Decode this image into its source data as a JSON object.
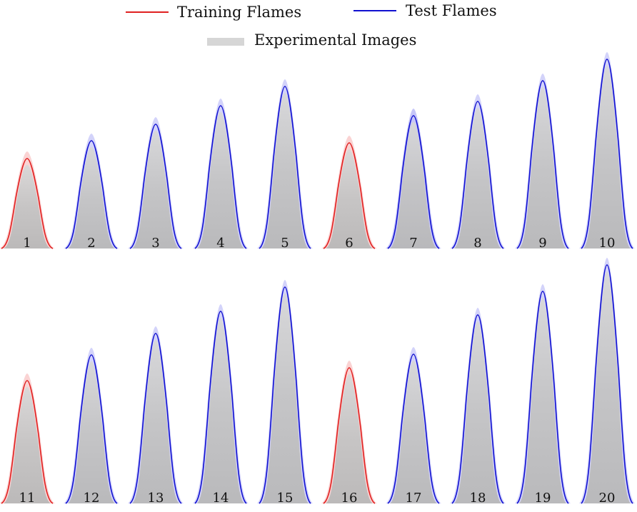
{
  "legend": {
    "training_label": "Training Flames",
    "test_label": "Test Flames",
    "experimental_label": "Experimental Images"
  },
  "colors": {
    "training": "#e02020",
    "training_band": "#f08080",
    "test": "#1010d0",
    "test_band": "#8080f0",
    "experimental": "#bdbdbd"
  },
  "flames": [
    {
      "label": "1",
      "type": "training"
    },
    {
      "label": "2",
      "type": "test"
    },
    {
      "label": "3",
      "type": "test"
    },
    {
      "label": "4",
      "type": "test"
    },
    {
      "label": "5",
      "type": "test"
    },
    {
      "label": "6",
      "type": "training"
    },
    {
      "label": "7",
      "type": "test"
    },
    {
      "label": "8",
      "type": "test"
    },
    {
      "label": "9",
      "type": "test"
    },
    {
      "label": "10",
      "type": "test"
    },
    {
      "label": "11",
      "type": "training"
    },
    {
      "label": "12",
      "type": "test"
    },
    {
      "label": "13",
      "type": "test"
    },
    {
      "label": "14",
      "type": "test"
    },
    {
      "label": "15",
      "type": "test"
    },
    {
      "label": "16",
      "type": "training"
    },
    {
      "label": "17",
      "type": "test"
    },
    {
      "label": "18",
      "type": "test"
    },
    {
      "label": "19",
      "type": "test"
    },
    {
      "label": "20",
      "type": "test"
    }
  ]
}
